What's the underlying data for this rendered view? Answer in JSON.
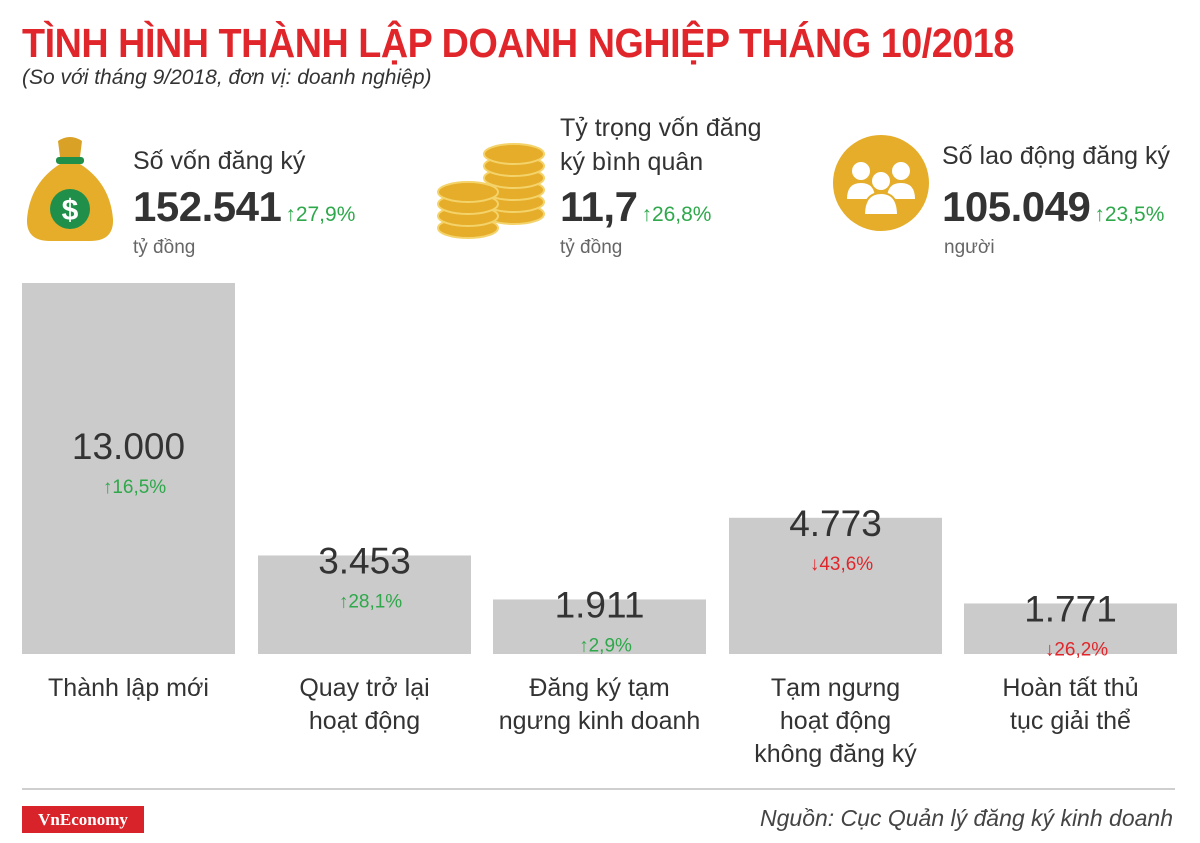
{
  "title": "TÌNH HÌNH THÀNH LẬP DOANH NGHIỆP THÁNG 10/2018",
  "subtitle": "(So với tháng 9/2018, đơn vị: doanh nghiệp)",
  "kpis": [
    {
      "label_lines": [
        "Số vốn đăng ký"
      ],
      "value": "152.541",
      "change": "27,9%",
      "direction": "up",
      "unit": "tỷ đồng",
      "icon": "money-bag-icon"
    },
    {
      "label_lines": [
        "Tỷ trọng vốn đăng",
        "ký bình quân"
      ],
      "value": "11,7",
      "change": "26,8%",
      "direction": "up",
      "unit": "tỷ đồng",
      "icon": "coins-icon"
    },
    {
      "label_lines": [
        "Số lao động đăng ký"
      ],
      "value": "105.049",
      "change": "23,5%",
      "direction": "up",
      "unit": "người",
      "icon": "people-icon"
    }
  ],
  "chart_data": {
    "type": "bar",
    "categories": [
      [
        "Thành lập mới"
      ],
      [
        "Quay trở lại",
        "hoạt động"
      ],
      [
        "Đăng ký tạm",
        "ngưng kinh doanh"
      ],
      [
        "Tạm ngưng",
        "hoạt động",
        "không đăng ký"
      ],
      [
        "Hoàn tất thủ",
        "tục giải thể"
      ]
    ],
    "values": [
      13000,
      3453,
      1911,
      4773,
      1771
    ],
    "value_labels": [
      "13.000",
      "3.453",
      "1.911",
      "4.773",
      "1.771"
    ],
    "changes": [
      "16,5%",
      "28,1%",
      "2,9%",
      "43,6%",
      "26,2%"
    ],
    "directions": [
      "up",
      "up",
      "up",
      "down",
      "down"
    ],
    "ylim": [
      0,
      13000
    ],
    "bar_color": "#cbcbcb",
    "up_color": "#2ea84a",
    "down_color": "#e0262b"
  },
  "footer": {
    "brand": "VnEconomy",
    "source": "Nguồn: Cục Quản lý đăng ký kinh doanh"
  }
}
